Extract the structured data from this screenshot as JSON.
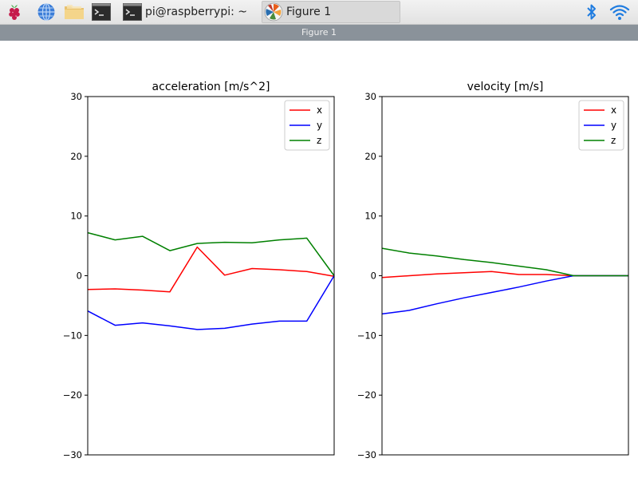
{
  "taskbar": {
    "launchers": [
      {
        "icon": "raspberry-pi-menu-icon"
      },
      {
        "icon": "web-browser-icon"
      },
      {
        "icon": "file-manager-icon"
      },
      {
        "icon": "terminal-icon"
      }
    ],
    "tasks": [
      {
        "label": "pi@raspberrypi: ~",
        "icon": "terminal-icon",
        "active": false
      },
      {
        "label": "Figure 1",
        "icon": "matplotlib-icon",
        "active": true
      }
    ],
    "tray": [
      {
        "icon": "bluetooth-icon",
        "color": "#1f7ce0"
      },
      {
        "icon": "wifi-icon",
        "color": "#1f7ce0"
      }
    ]
  },
  "window": {
    "title": "Figure 1"
  },
  "chart_data": [
    {
      "type": "line",
      "title": "acceleration [m/s^2]",
      "xlabel": "",
      "ylabel": "",
      "x": [
        0,
        1,
        2,
        3,
        4,
        5,
        6,
        7,
        8,
        9
      ],
      "xlim": [
        0,
        9
      ],
      "ylim": [
        -30,
        30
      ],
      "yticks": [
        30,
        20,
        10,
        0,
        -10,
        -20,
        -30
      ],
      "ytick_labels": [
        "30",
        "20",
        "10",
        "0",
        "−10",
        "−20",
        "−30"
      ],
      "legend": "top-right",
      "grid": false,
      "series": [
        {
          "name": "x",
          "color": "#ff0000",
          "values": [
            -2.3,
            -2.2,
            -2.4,
            -2.7,
            4.8,
            0.1,
            1.2,
            1.0,
            0.7,
            -0.1
          ]
        },
        {
          "name": "y",
          "color": "#0000ff",
          "values": [
            -5.9,
            -8.3,
            -7.9,
            -8.4,
            -9.0,
            -8.8,
            -8.1,
            -7.6,
            -7.6,
            0.0
          ]
        },
        {
          "name": "z",
          "color": "#008000",
          "values": [
            7.2,
            6.0,
            6.6,
            4.2,
            5.4,
            5.6,
            5.5,
            6.0,
            6.3,
            0.0
          ]
        }
      ]
    },
    {
      "type": "line",
      "title": "velocity [m/s]",
      "xlabel": "",
      "ylabel": "",
      "x": [
        0,
        1,
        2,
        3,
        4,
        5,
        6,
        7,
        8,
        9
      ],
      "xlim": [
        0,
        9
      ],
      "ylim": [
        -30,
        30
      ],
      "yticks": [
        30,
        20,
        10,
        0,
        -10,
        -20,
        -30
      ],
      "ytick_labels": [
        "30",
        "20",
        "10",
        "0",
        "−10",
        "−20",
        "−30"
      ],
      "legend": "top-right",
      "grid": false,
      "series": [
        {
          "name": "x",
          "color": "#ff0000",
          "values": [
            -0.3,
            0.0,
            0.3,
            0.5,
            0.7,
            0.2,
            0.2,
            0.0,
            0.0,
            0.0
          ]
        },
        {
          "name": "y",
          "color": "#0000ff",
          "values": [
            -6.4,
            -5.8,
            -4.7,
            -3.7,
            -2.8,
            -1.9,
            -0.9,
            0.0,
            0.0,
            0.0
          ]
        },
        {
          "name": "z",
          "color": "#008000",
          "values": [
            4.6,
            3.8,
            3.3,
            2.7,
            2.2,
            1.6,
            1.0,
            0.0,
            0.0,
            0.0
          ]
        }
      ]
    }
  ]
}
